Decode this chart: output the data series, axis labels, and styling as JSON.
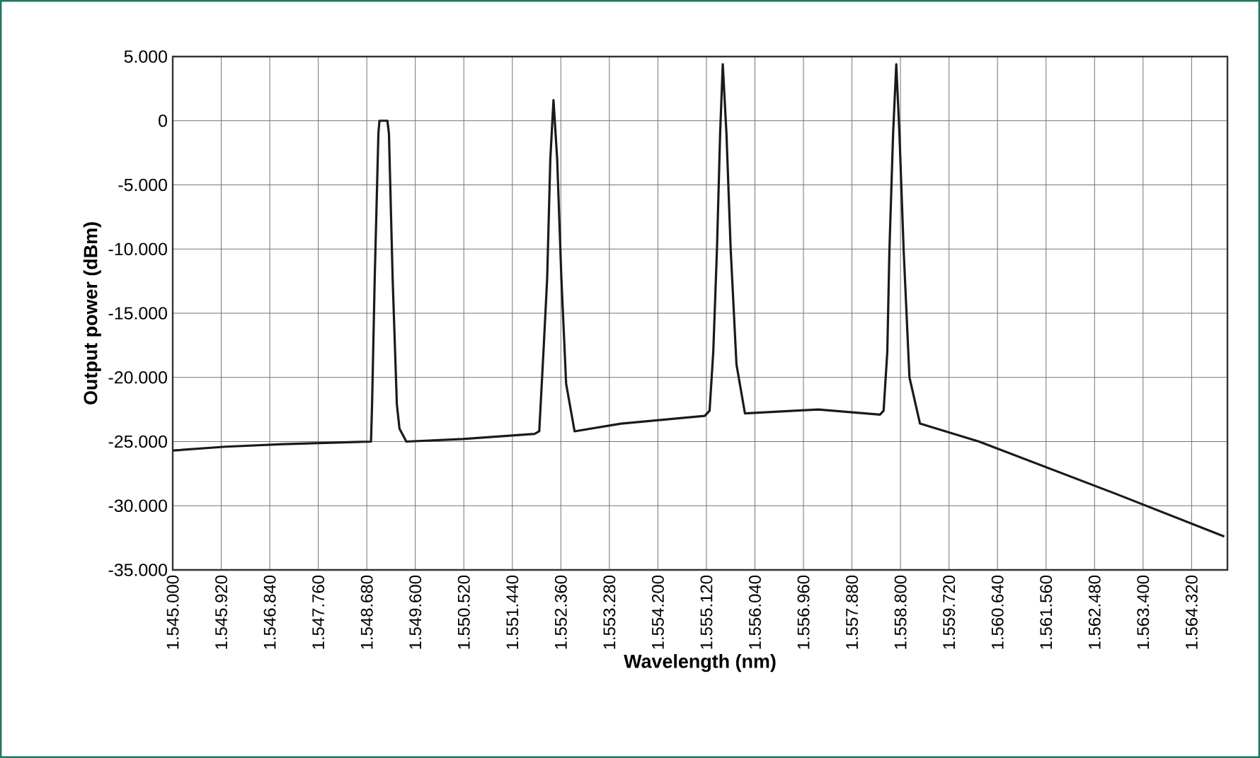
{
  "chart_data": {
    "type": "line",
    "xlabel": "Wavelength (nm)",
    "ylabel": "Output power (dBm)",
    "xlim": [
      1545000,
      1565000
    ],
    "ylim": [
      -35000,
      5000
    ],
    "xticks": [
      {
        "value": 1545000,
        "label": "1.545.000"
      },
      {
        "value": 1545920,
        "label": "1.545.920"
      },
      {
        "value": 1546840,
        "label": "1.546.840"
      },
      {
        "value": 1547760,
        "label": "1.547.760"
      },
      {
        "value": 1548680,
        "label": "1.548.680"
      },
      {
        "value": 1549600,
        "label": "1.549.600"
      },
      {
        "value": 1550520,
        "label": "1.550.520"
      },
      {
        "value": 1551440,
        "label": "1.551.440"
      },
      {
        "value": 1552360,
        "label": "1.552.360"
      },
      {
        "value": 1553280,
        "label": "1.553.280"
      },
      {
        "value": 1554200,
        "label": "1.554.200"
      },
      {
        "value": 1555120,
        "label": "1.555.120"
      },
      {
        "value": 1556040,
        "label": "1.556.040"
      },
      {
        "value": 1556960,
        "label": "1.556.960"
      },
      {
        "value": 1557880,
        "label": "1.557.880"
      },
      {
        "value": 1558800,
        "label": "1.558.800"
      },
      {
        "value": 1559720,
        "label": "1.559.720"
      },
      {
        "value": 1560640,
        "label": "1.560.640"
      },
      {
        "value": 1561560,
        "label": "1.561.560"
      },
      {
        "value": 1562480,
        "label": "1.562.480"
      },
      {
        "value": 1563400,
        "label": "1.563.400"
      },
      {
        "value": 1564320,
        "label": "1.564.320"
      }
    ],
    "yticks": [
      {
        "value": 5000,
        "label": "5.000"
      },
      0,
      {
        "value": -5000,
        "label": "-5.000"
      },
      {
        "value": -10000,
        "label": "-10.000"
      },
      {
        "value": -15000,
        "label": "-15.000"
      },
      {
        "value": -20000,
        "label": "-20.000"
      },
      {
        "value": -25000,
        "label": "-25.000"
      },
      {
        "value": -30000,
        "label": "-30.000"
      },
      {
        "value": -35000,
        "label": "-35.000"
      }
    ],
    "grid": true,
    "series": [
      {
        "color": "#1a1a1a",
        "x": [
          1545000,
          1546000,
          1547100,
          1548760,
          1548780,
          1548830,
          1548900,
          1548920,
          1549070,
          1549100,
          1549170,
          1549250,
          1549300,
          1549430,
          1550500,
          1551860,
          1551950,
          1552030,
          1552100,
          1552160,
          1552220,
          1552290,
          1552370,
          1552460,
          1552620,
          1553500,
          1555090,
          1555180,
          1555250,
          1555320,
          1555380,
          1555430,
          1555500,
          1555580,
          1555690,
          1555850,
          1556790,
          1557240,
          1558410,
          1558480,
          1558550,
          1558590,
          1558660,
          1558720,
          1558780,
          1558860,
          1558970,
          1559170,
          1560290,
          1562900,
          1564940
        ],
        "values": [
          -25700,
          -25400,
          -25200,
          -25000,
          -22100,
          -12300,
          -1000,
          0,
          0,
          -1000,
          -12300,
          -22100,
          -24000,
          -25000,
          -24800,
          -24400,
          -24200,
          -18000,
          -12300,
          -3000,
          1600,
          -3000,
          -12300,
          -20500,
          -24200,
          -23600,
          -23000,
          -22600,
          -18000,
          -10000,
          -1000,
          4400,
          -1000,
          -10000,
          -19000,
          -22800,
          -22600,
          -22500,
          -22900,
          -22600,
          -18000,
          -10100,
          -1000,
          4400,
          -1000,
          -10100,
          -20000,
          -23600,
          -25000,
          -29100,
          -32400
        ]
      }
    ]
  }
}
